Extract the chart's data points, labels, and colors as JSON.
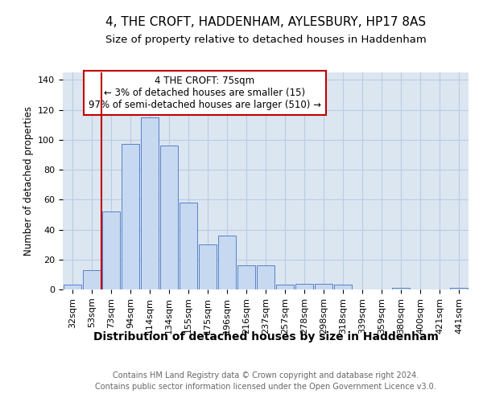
{
  "title": "4, THE CROFT, HADDENHAM, AYLESBURY, HP17 8AS",
  "subtitle": "Size of property relative to detached houses in Haddenham",
  "xlabel": "Distribution of detached houses by size in Haddenham",
  "ylabel": "Number of detached properties",
  "categories": [
    "32sqm",
    "53sqm",
    "73sqm",
    "94sqm",
    "114sqm",
    "134sqm",
    "155sqm",
    "175sqm",
    "196sqm",
    "216sqm",
    "237sqm",
    "257sqm",
    "278sqm",
    "298sqm",
    "318sqm",
    "339sqm",
    "359sqm",
    "380sqm",
    "400sqm",
    "421sqm",
    "441sqm"
  ],
  "values": [
    3,
    13,
    52,
    97,
    115,
    96,
    58,
    30,
    36,
    16,
    16,
    3,
    4,
    4,
    3,
    0,
    0,
    1,
    0,
    0,
    1
  ],
  "bar_color": "#c6d9f0",
  "bar_edge_color": "#4472c4",
  "vline_color": "#c00000",
  "vline_x_index": 2,
  "annotation_line1": "4 THE CROFT: 75sqm",
  "annotation_line2": "← 3% of detached houses are smaller (15)",
  "annotation_line3": "97% of semi-detached houses are larger (510) →",
  "annotation_box_color": "#c00000",
  "ylim": [
    0,
    145
  ],
  "yticks": [
    0,
    20,
    40,
    60,
    80,
    100,
    120,
    140
  ],
  "grid_color": "#b8cce4",
  "background_color": "#dce6f1",
  "footer_line1": "Contains HM Land Registry data © Crown copyright and database right 2024.",
  "footer_line2": "Contains public sector information licensed under the Open Government Licence v3.0.",
  "title_fontsize": 11,
  "subtitle_fontsize": 9.5,
  "xlabel_fontsize": 10,
  "ylabel_fontsize": 8.5,
  "tick_fontsize": 8,
  "annotation_fontsize": 8.5,
  "footer_fontsize": 7
}
